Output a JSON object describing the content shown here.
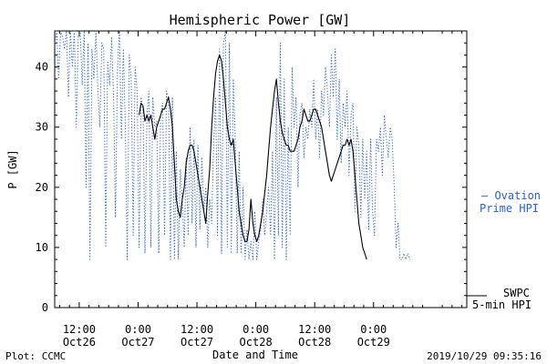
{
  "chart_data": {
    "type": "line",
    "title": "Hemispheric Power [GW]",
    "xlabel": "Date and Time",
    "ylabel": "P [GW]",
    "ylim": [
      0,
      46
    ],
    "xlim_hours": [
      -17,
      67
    ],
    "yticks": [
      0,
      10,
      20,
      30,
      40
    ],
    "xticks": [
      {
        "t": -12,
        "time": "12:00",
        "date": "Oct26"
      },
      {
        "t": 0,
        "time": "0:00",
        "date": "Oct27"
      },
      {
        "t": 12,
        "time": "12:00",
        "date": "Oct27"
      },
      {
        "t": 24,
        "time": "0:00",
        "date": "Oct28"
      },
      {
        "t": 36,
        "time": "12:00",
        "date": "Oct28"
      },
      {
        "t": 48,
        "time": "0:00",
        "date": "Oct29"
      }
    ],
    "grid": false,
    "legend_position": "right",
    "series": [
      {
        "name": "Ovation Prime HPI",
        "legend_lines": [
          "— Ovation",
          "Prime HPI"
        ],
        "style": "dotted",
        "color": "#2a62c9",
        "points": [
          [
            -17,
            44
          ],
          [
            -16.6,
            46
          ],
          [
            -16.2,
            38
          ],
          [
            -15.8,
            46
          ],
          [
            -15.4,
            45
          ],
          [
            -15,
            43
          ],
          [
            -14.6,
            46
          ],
          [
            -14.2,
            35
          ],
          [
            -13.8,
            46
          ],
          [
            -13.4,
            40
          ],
          [
            -13,
            46
          ],
          [
            -12.6,
            30
          ],
          [
            -12.2,
            45
          ],
          [
            -11.8,
            46
          ],
          [
            -11.4,
            37
          ],
          [
            -11,
            46
          ],
          [
            -10.6,
            20
          ],
          [
            -10.2,
            44
          ],
          [
            -9.8,
            8
          ],
          [
            -9.4,
            43
          ],
          [
            -9,
            38
          ],
          [
            -8.6,
            46
          ],
          [
            -8.2,
            36
          ],
          [
            -7.8,
            30
          ],
          [
            -7.4,
            44
          ],
          [
            -7,
            43
          ],
          [
            -6.6,
            10
          ],
          [
            -6.2,
            41
          ],
          [
            -5.8,
            37
          ],
          [
            -5.4,
            45
          ],
          [
            -5,
            35
          ],
          [
            -4.6,
            15
          ],
          [
            -4.2,
            40
          ],
          [
            -3.8,
            46
          ],
          [
            -3.4,
            28
          ],
          [
            -3,
            43
          ],
          [
            -2.6,
            30
          ],
          [
            -2.2,
            8
          ],
          [
            -1.8,
            42
          ],
          [
            -1.4,
            38
          ],
          [
            -1,
            12
          ],
          [
            -0.6,
            40
          ],
          [
            -0.2,
            36
          ],
          [
            0.2,
            10
          ],
          [
            0.6,
            35
          ],
          [
            1,
            33
          ],
          [
            1.4,
            9
          ],
          [
            1.8,
            32
          ],
          [
            2.2,
            36
          ],
          [
            2.6,
            10
          ],
          [
            3,
            35
          ],
          [
            3.4,
            30
          ],
          [
            3.8,
            31
          ],
          [
            4.2,
            9
          ],
          [
            4.6,
            32
          ],
          [
            5,
            34
          ],
          [
            5.4,
            12
          ],
          [
            5.8,
            36
          ],
          [
            6.2,
            35
          ],
          [
            6.6,
            8
          ],
          [
            7,
            35
          ],
          [
            7.4,
            8
          ],
          [
            7.8,
            26
          ],
          [
            8.2,
            8
          ],
          [
            8.6,
            23
          ],
          [
            9,
            18
          ],
          [
            9.4,
            10
          ],
          [
            9.8,
            25
          ],
          [
            10.2,
            12
          ],
          [
            10.6,
            30
          ],
          [
            11,
            14
          ],
          [
            11.4,
            28
          ],
          [
            11.8,
            10
          ],
          [
            12.2,
            27
          ],
          [
            12.6,
            13
          ],
          [
            13,
            25
          ],
          [
            13.4,
            16
          ],
          [
            13.8,
            20
          ],
          [
            14.2,
            10
          ],
          [
            14.6,
            18
          ],
          [
            15,
            14
          ],
          [
            15.4,
            27
          ],
          [
            15.8,
            35
          ],
          [
            16.2,
            12
          ],
          [
            16.6,
            43
          ],
          [
            17,
            9
          ],
          [
            17.4,
            44
          ],
          [
            17.8,
            46
          ],
          [
            18.2,
            10
          ],
          [
            18.6,
            44
          ],
          [
            19,
            9
          ],
          [
            19.4,
            38
          ],
          [
            19.8,
            28
          ],
          [
            20.2,
            9
          ],
          [
            20.6,
            26
          ],
          [
            21,
            9
          ],
          [
            21.4,
            20
          ],
          [
            21.8,
            8
          ],
          [
            22.2,
            13
          ],
          [
            22.6,
            8
          ],
          [
            23,
            11
          ],
          [
            23.4,
            8
          ],
          [
            23.8,
            16
          ],
          [
            24.2,
            8
          ],
          [
            24.6,
            11
          ],
          [
            25,
            13
          ],
          [
            25.4,
            18
          ],
          [
            25.8,
            12
          ],
          [
            26.2,
            16
          ],
          [
            26.6,
            20
          ],
          [
            27,
            12
          ],
          [
            27.4,
            26
          ],
          [
            27.8,
            8
          ],
          [
            28.2,
            35
          ],
          [
            28.6,
            12
          ],
          [
            29,
            44
          ],
          [
            29.4,
            10
          ],
          [
            29.8,
            38
          ],
          [
            30.2,
            8
          ],
          [
            30.6,
            30
          ],
          [
            31,
            12
          ],
          [
            31.4,
            40
          ],
          [
            31.8,
            30
          ],
          [
            32.2,
            35
          ],
          [
            32.6,
            20
          ],
          [
            33,
            32
          ],
          [
            33.4,
            34
          ],
          [
            33.8,
            25
          ],
          [
            34.2,
            30
          ],
          [
            34.6,
            28
          ],
          [
            35,
            33
          ],
          [
            35.4,
            30
          ],
          [
            35.8,
            38
          ],
          [
            36.2,
            28
          ],
          [
            36.6,
            33
          ],
          [
            37,
            25
          ],
          [
            37.4,
            36
          ],
          [
            37.8,
            32
          ],
          [
            38.2,
            40
          ],
          [
            38.6,
            36
          ],
          [
            39,
            30
          ],
          [
            39.4,
            42
          ],
          [
            39.8,
            35
          ],
          [
            40.2,
            43
          ],
          [
            40.6,
            28
          ],
          [
            41,
            38
          ],
          [
            41.4,
            24
          ],
          [
            41.8,
            34
          ],
          [
            42.2,
            30
          ],
          [
            42.6,
            36
          ],
          [
            43,
            22
          ],
          [
            43.4,
            32
          ],
          [
            43.8,
            34
          ],
          [
            44.2,
            16
          ],
          [
            44.6,
            30
          ],
          [
            45,
            27
          ],
          [
            45.4,
            15
          ],
          [
            45.8,
            28
          ],
          [
            46.2,
            18
          ],
          [
            46.6,
            26
          ],
          [
            47,
            13
          ],
          [
            47.4,
            28
          ],
          [
            47.8,
            16
          ],
          [
            48.2,
            12
          ],
          [
            48.6,
            28
          ],
          [
            49,
            26
          ],
          [
            49.4,
            30
          ],
          [
            49.8,
            22
          ],
          [
            50.2,
            32
          ],
          [
            50.6,
            28
          ],
          [
            51,
            25
          ],
          [
            51.4,
            30
          ],
          [
            51.8,
            28
          ],
          [
            52.2,
            20
          ],
          [
            52.6,
            10
          ],
          [
            53,
            14
          ],
          [
            53.4,
            8
          ],
          [
            53.8,
            8
          ],
          [
            54.2,
            9
          ],
          [
            54.6,
            8
          ],
          [
            55,
            9
          ],
          [
            55.4,
            8
          ]
        ]
      },
      {
        "name": "SWPC 5-min HPI",
        "legend_lines": [
          "SWPC",
          "5-min HPI"
        ],
        "style": "solid",
        "color": "#000000",
        "points": [
          [
            0.2,
            32
          ],
          [
            0.6,
            34
          ],
          [
            1,
            33.5
          ],
          [
            1.4,
            31
          ],
          [
            1.8,
            32
          ],
          [
            2.2,
            31
          ],
          [
            2.6,
            32
          ],
          [
            3,
            30
          ],
          [
            3.4,
            28
          ],
          [
            3.8,
            30
          ],
          [
            4.2,
            31
          ],
          [
            4.6,
            32
          ],
          [
            5,
            33
          ],
          [
            5.4,
            33
          ],
          [
            5.8,
            34
          ],
          [
            6.2,
            35
          ],
          [
            6.6,
            33
          ],
          [
            7,
            30
          ],
          [
            7.4,
            24
          ],
          [
            7.8,
            18
          ],
          [
            8.2,
            16
          ],
          [
            8.6,
            15
          ],
          [
            9,
            18
          ],
          [
            9.4,
            20
          ],
          [
            9.8,
            24
          ],
          [
            10.2,
            26
          ],
          [
            10.6,
            27
          ],
          [
            11,
            27
          ],
          [
            11.4,
            26
          ],
          [
            11.8,
            24
          ],
          [
            12.2,
            22
          ],
          [
            12.6,
            20
          ],
          [
            13,
            18
          ],
          [
            13.4,
            16
          ],
          [
            13.8,
            14
          ],
          [
            14.2,
            19
          ],
          [
            14.6,
            23
          ],
          [
            15,
            30
          ],
          [
            15.4,
            35
          ],
          [
            15.8,
            39
          ],
          [
            16.2,
            41
          ],
          [
            16.6,
            42
          ],
          [
            17,
            41
          ],
          [
            17.4,
            38
          ],
          [
            17.8,
            34
          ],
          [
            18.2,
            30
          ],
          [
            18.6,
            28
          ],
          [
            19,
            27
          ],
          [
            19.4,
            28
          ],
          [
            19.8,
            24
          ],
          [
            20.2,
            20
          ],
          [
            20.6,
            16
          ],
          [
            21,
            14
          ],
          [
            21.4,
            12
          ],
          [
            21.8,
            11
          ],
          [
            22.2,
            11
          ],
          [
            22.6,
            13
          ],
          [
            23,
            18
          ],
          [
            23.4,
            14
          ],
          [
            23.8,
            12
          ],
          [
            24.2,
            11
          ],
          [
            24.6,
            12
          ],
          [
            25,
            14
          ],
          [
            25.4,
            16
          ],
          [
            25.8,
            19
          ],
          [
            26.2,
            22
          ],
          [
            26.6,
            26
          ],
          [
            27,
            30
          ],
          [
            27.4,
            33
          ],
          [
            27.8,
            36
          ],
          [
            28.2,
            38
          ],
          [
            28.6,
            34
          ],
          [
            29,
            31
          ],
          [
            29.4,
            29
          ],
          [
            29.8,
            28
          ],
          [
            30.2,
            27
          ],
          [
            30.6,
            27
          ],
          [
            31,
            26
          ],
          [
            31.4,
            26
          ],
          [
            31.8,
            26
          ],
          [
            32.2,
            27
          ],
          [
            32.6,
            28
          ],
          [
            33,
            30
          ],
          [
            33.4,
            31
          ],
          [
            33.8,
            33
          ],
          [
            34.2,
            32
          ],
          [
            34.6,
            31
          ],
          [
            35,
            31
          ],
          [
            35.4,
            32
          ],
          [
            35.8,
            33
          ],
          [
            36.2,
            33
          ],
          [
            36.6,
            32
          ],
          [
            37,
            31
          ],
          [
            37.4,
            30
          ],
          [
            37.8,
            28
          ],
          [
            38.2,
            26
          ],
          [
            38.6,
            24
          ],
          [
            39,
            22
          ],
          [
            39.4,
            21
          ],
          [
            39.8,
            22
          ],
          [
            40.2,
            23
          ],
          [
            40.6,
            24
          ],
          [
            41,
            25
          ],
          [
            41.4,
            26
          ],
          [
            41.8,
            27
          ],
          [
            42.2,
            27
          ],
          [
            42.6,
            28
          ],
          [
            43,
            27
          ],
          [
            43.4,
            28
          ],
          [
            43.8,
            26
          ],
          [
            44.2,
            22
          ],
          [
            44.6,
            18
          ],
          [
            45,
            14
          ],
          [
            45.4,
            12
          ],
          [
            45.8,
            10
          ],
          [
            46.2,
            9
          ],
          [
            46.6,
            8
          ]
        ]
      }
    ]
  },
  "footer": {
    "plot_credit": "Plot: CCMC",
    "timestamp": "2019/10/29 09:35:16"
  }
}
